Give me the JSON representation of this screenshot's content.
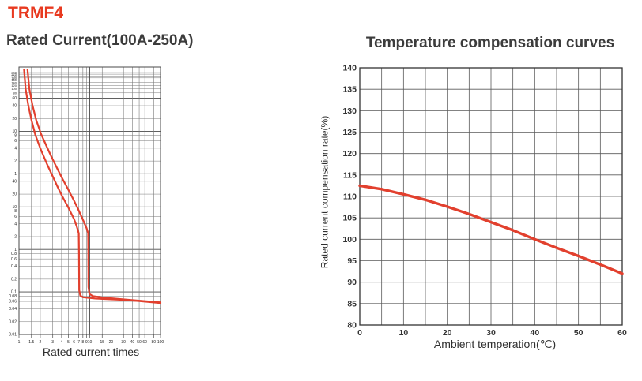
{
  "colors": {
    "accent_red": "#e8391f",
    "heading": "#3c3c3c",
    "curve_red": "#e2402e",
    "grid": "#7a7a7a",
    "grid_major": "#4a4a4a",
    "axis_text": "#222222"
  },
  "header": {
    "model": "TRMF4"
  },
  "chart_data": [
    {
      "type": "line",
      "title": "Rated Current(100A-250A)",
      "xlabel": "Rated current times",
      "ylabel": "",
      "x_scale": "log",
      "y_scale": "log",
      "xlim": [
        1,
        100
      ],
      "y_note": "trip time: upper labels in minutes (240..1), lower labels in seconds (40..0.01)",
      "x_ticks": [
        [
          1,
          "1",
          1
        ],
        [
          1.5,
          "1.5",
          0
        ],
        [
          2,
          "2",
          0
        ],
        [
          3,
          "3",
          0
        ],
        [
          4,
          "4",
          0
        ],
        [
          5,
          "5",
          0
        ],
        [
          6,
          "6",
          0
        ],
        [
          7,
          "7",
          0
        ],
        [
          8,
          "8",
          0
        ],
        [
          9,
          "9",
          0
        ],
        [
          10,
          "10",
          1
        ],
        [
          15,
          "15",
          0
        ],
        [
          20,
          "20",
          0
        ],
        [
          30,
          "30",
          0
        ],
        [
          40,
          "40",
          0
        ],
        [
          50,
          "50",
          0
        ],
        [
          60,
          "60",
          0
        ],
        [
          80,
          "80",
          0
        ],
        [
          100,
          "100",
          1
        ]
      ],
      "y_ticks": [
        [
          14400,
          "240",
          0
        ],
        [
          13200,
          "220",
          0
        ],
        [
          12000,
          "200",
          0
        ],
        [
          10800,
          "180",
          0
        ],
        [
          9600,
          "160",
          0
        ],
        [
          8400,
          "140",
          0
        ],
        [
          7200,
          "120",
          0
        ],
        [
          6000,
          "100",
          0
        ],
        [
          4800,
          "80",
          0
        ],
        [
          3600,
          "60",
          1
        ],
        [
          2400,
          "40",
          0
        ],
        [
          1200,
          "20",
          0
        ],
        [
          600,
          "10",
          1
        ],
        [
          480,
          "8",
          0
        ],
        [
          360,
          "6",
          0
        ],
        [
          240,
          "4",
          0
        ],
        [
          120,
          "2",
          0
        ],
        [
          60,
          "1",
          1
        ],
        [
          40,
          "40",
          0
        ],
        [
          20,
          "20",
          0
        ],
        [
          10,
          "10",
          1
        ],
        [
          8,
          "8",
          0
        ],
        [
          6,
          "6",
          0
        ],
        [
          4,
          "4",
          0
        ],
        [
          2,
          "2",
          0
        ],
        [
          1,
          "1",
          1
        ],
        [
          0.8,
          "0.8",
          0
        ],
        [
          0.6,
          "0.6",
          0
        ],
        [
          0.4,
          "0.4",
          0
        ],
        [
          0.2,
          "0.2",
          0
        ],
        [
          0.1,
          "0.1",
          1
        ],
        [
          0.08,
          "0.08",
          0
        ],
        [
          0.06,
          "0.06",
          0
        ],
        [
          0.04,
          "0.04",
          0
        ],
        [
          0.02,
          "0.02",
          0
        ],
        [
          0.01,
          "0.01",
          1
        ]
      ],
      "series": [
        {
          "name": "min-trip-time",
          "points": [
            [
              1.18,
              17000
            ],
            [
              1.24,
              6000
            ],
            [
              1.35,
              2500
            ],
            [
              1.5,
              1100
            ],
            [
              1.7,
              500
            ],
            [
              2,
              240
            ],
            [
              2.5,
              100
            ],
            [
              3,
              52
            ],
            [
              3.5,
              30
            ],
            [
              4,
              19
            ],
            [
              5,
              9.5
            ],
            [
              6,
              5.2
            ],
            [
              6.5,
              3.6
            ],
            [
              7,
              2.4
            ],
            [
              7.05,
              0.8
            ],
            [
              7.1,
              0.11
            ],
            [
              7.35,
              0.082
            ],
            [
              8,
              0.075
            ],
            [
              12,
              0.07
            ],
            [
              25,
              0.066
            ],
            [
              50,
              0.061
            ],
            [
              100,
              0.055
            ]
          ]
        },
        {
          "name": "max-trip-time",
          "points": [
            [
              1.32,
              17000
            ],
            [
              1.4,
              6000
            ],
            [
              1.55,
              2500
            ],
            [
              1.75,
              1100
            ],
            [
              2.05,
              520
            ],
            [
              2.5,
              250
            ],
            [
              3,
              130
            ],
            [
              3.5,
              78
            ],
            [
              4,
              50
            ],
            [
              5,
              25
            ],
            [
              6,
              14
            ],
            [
              7,
              8.2
            ],
            [
              8,
              5
            ],
            [
              9,
              3.2
            ],
            [
              9.5,
              2.4
            ],
            [
              9.55,
              0.9
            ],
            [
              9.6,
              0.13
            ],
            [
              9.9,
              0.09
            ],
            [
              11,
              0.08
            ],
            [
              15,
              0.074
            ],
            [
              30,
              0.067
            ],
            [
              60,
              0.061
            ],
            [
              100,
              0.057
            ]
          ]
        }
      ]
    },
    {
      "type": "line",
      "title": "Temperature compensation curves",
      "xlabel": "Ambient temperation(℃)",
      "ylabel": "Rated current compensation rate(%)",
      "xlim": [
        0,
        60
      ],
      "ylim": [
        80,
        140
      ],
      "x_tick_step_minor": 5,
      "x_tick_step_label": 10,
      "y_tick_step": 5,
      "x_tick_labels": [
        "0",
        "10",
        "20",
        "30",
        "40",
        "50",
        "60"
      ],
      "y_tick_labels": [
        "140",
        "135",
        "130",
        "125",
        "120",
        "115",
        "110",
        "105",
        "100",
        "95",
        "90",
        "85",
        "80"
      ],
      "x": [
        0,
        5,
        10,
        15,
        20,
        25,
        30,
        35,
        40,
        45,
        50,
        55,
        60
      ],
      "values": [
        112.5,
        111.7,
        110.5,
        109.2,
        107.6,
        105.9,
        104,
        102.1,
        100,
        98,
        96.1,
        94.1,
        92
      ]
    }
  ]
}
